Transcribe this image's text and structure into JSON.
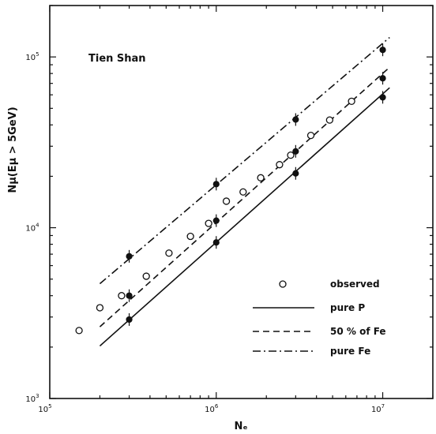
{
  "chart_data": {
    "type": "scatter",
    "annotation": "Tien Shan",
    "xlabel": "Nₑ",
    "ylabel": "Nμ(Eμ > 5GeV)",
    "xscale": "log",
    "yscale": "log",
    "xlim": [
      100000,
      20000000
    ],
    "ylim": [
      1000,
      200000
    ],
    "x_ticks": [
      {
        "value": 100000,
        "base": "10",
        "exp": "5"
      },
      {
        "value": 1000000,
        "base": "10",
        "exp": "6"
      },
      {
        "value": 10000000,
        "base": "10",
        "exp": "7"
      }
    ],
    "y_ticks": [
      {
        "value": 1000,
        "base": "10",
        "exp": "3"
      },
      {
        "value": 10000,
        "base": "10",
        "exp": "4"
      },
      {
        "value": 100000,
        "base": "10",
        "exp": "5"
      }
    ],
    "legend_position": "bottom-right",
    "series": [
      {
        "name": "observed",
        "style": "open-circle",
        "x": [
          150000,
          200000,
          270000,
          380000,
          520000,
          700000,
          900000,
          1150000,
          1450000,
          1850000,
          2400000,
          2800000,
          3700000,
          4800000,
          6500000
        ],
        "y": [
          2500,
          3400,
          4000,
          5200,
          7100,
          8900,
          10600,
          14300,
          16200,
          19600,
          23400,
          26600,
          34700,
          42700,
          55000
        ]
      },
      {
        "name": "pure P",
        "style": "solid",
        "line_x": [
          200000,
          11000000
        ],
        "line_y": [
          2030,
          66000
        ],
        "marker_x": [
          300000,
          1000000,
          3000000,
          10000000
        ],
        "marker_y": [
          2900,
          8200,
          20800,
          58000
        ]
      },
      {
        "name": "50 % of Fe",
        "style": "dashed",
        "line_x": [
          200000,
          11000000
        ],
        "line_y": [
          2630,
          87000
        ],
        "marker_x": [
          300000,
          1000000,
          3000000,
          10000000
        ],
        "marker_y": [
          4000,
          11000,
          28000,
          75000
        ]
      },
      {
        "name": "pure Fe",
        "style": "dashdot",
        "line_x": [
          200000,
          11000000
        ],
        "line_y": [
          4700,
          130000
        ],
        "marker_x": [
          300000,
          1000000,
          3000000,
          10000000
        ],
        "marker_y": [
          6800,
          18000,
          43000,
          110000
        ]
      }
    ]
  }
}
